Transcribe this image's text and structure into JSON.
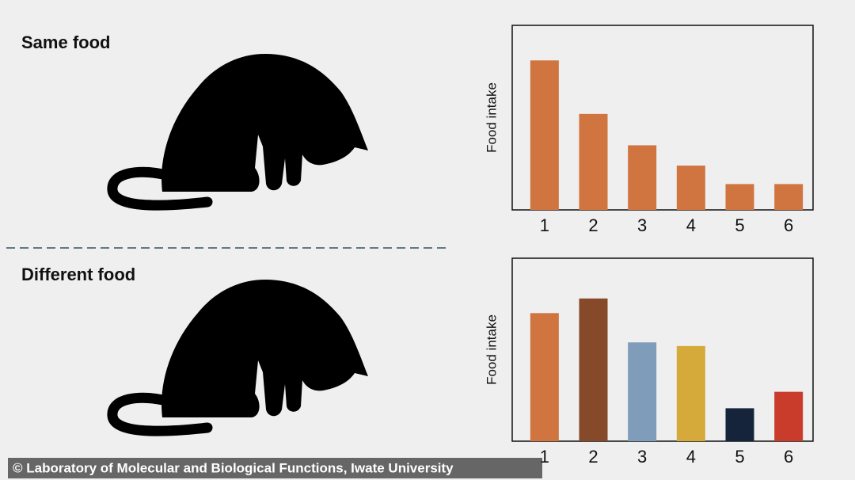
{
  "chart_data": [
    {
      "type": "bar",
      "title": "Same food",
      "y_label": "Food intake",
      "categories": [
        "1",
        "2",
        "3",
        "4",
        "5",
        "6"
      ],
      "values": [
        81,
        52,
        35,
        24,
        14,
        14
      ],
      "colors": [
        "#d07440",
        "#d07440",
        "#d07440",
        "#d07440",
        "#d07440",
        "#d07440"
      ],
      "ylim": [
        0,
        100
      ]
    },
    {
      "type": "bar",
      "title": "Different food",
      "y_label": "Food intake",
      "categories": [
        "1",
        "2",
        "3",
        "4",
        "5",
        "6"
      ],
      "values": [
        70,
        78,
        54,
        52,
        18,
        27
      ],
      "colors": [
        "#d07440",
        "#864a2a",
        "#7f9dba",
        "#d5a93a",
        "#15233b",
        "#c93b2a"
      ],
      "ylim": [
        0,
        100
      ]
    }
  ],
  "credit": "© Laboratory of Molecular and Biological Functions, Iwate University"
}
